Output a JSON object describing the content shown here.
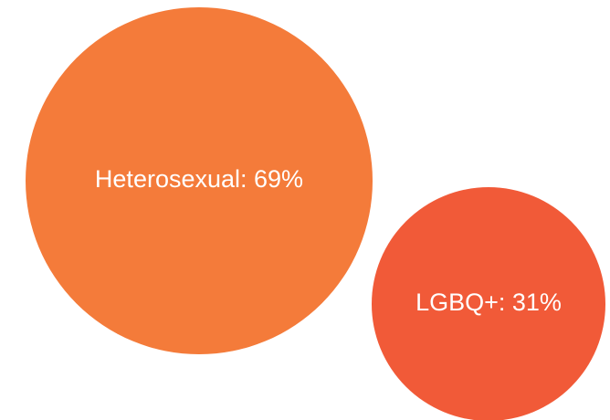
{
  "chart_data": {
    "type": "bubble",
    "series": [
      {
        "label": "Heterosexual: 69%",
        "category": "Heterosexual",
        "value": 69,
        "unit": "%",
        "color": "#f47b3a"
      },
      {
        "label": "LGBQ+: 31%",
        "category": "LGBQ+",
        "value": 31,
        "unit": "%",
        "color": "#f15a38"
      }
    ]
  }
}
